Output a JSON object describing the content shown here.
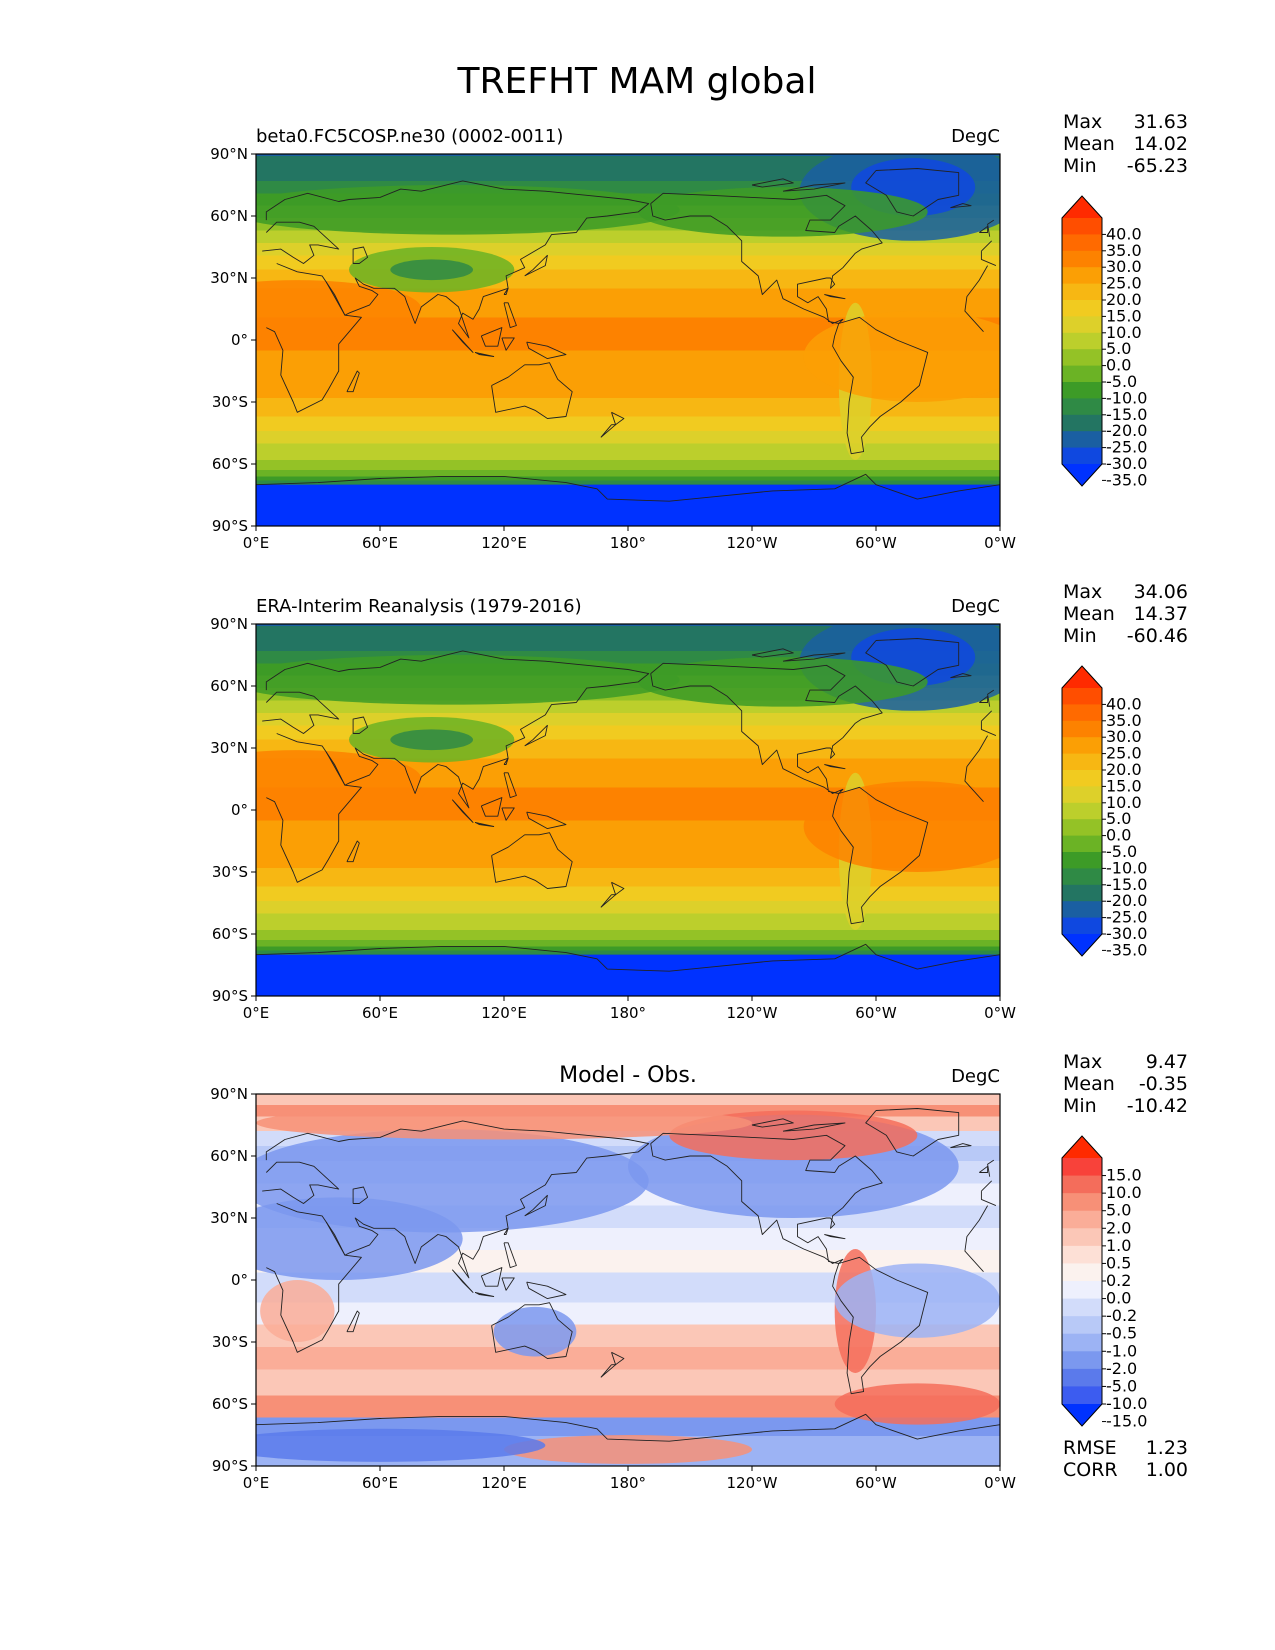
{
  "figure": {
    "title": "TREFHT MAM global"
  },
  "panels": [
    {
      "id": "test",
      "title_left": "beta0.FC5COSP.ne30 (0002-0011)",
      "title_center": "",
      "units": "DegC",
      "stats": [
        {
          "label": "Max",
          "value": "31.63"
        },
        {
          "label": "Mean",
          "value": "14.02"
        },
        {
          "label": "Min",
          "value": "-65.23"
        }
      ],
      "colorbar": {
        "labels": [
          "40.0",
          "35.0",
          "30.0",
          "25.0",
          "20.0",
          "15.0",
          "10.0",
          "5.0",
          "0.0",
          "-5.0",
          "-10.0",
          "-15.0",
          "-20.0",
          "-25.0",
          "-30.0",
          "-35.0"
        ],
        "colors": [
          "#ff2a00",
          "#ff4e00",
          "#ff6a00",
          "#fd8200",
          "#fb9f05",
          "#f7b713",
          "#f1cb20",
          "#ddd02a",
          "#bccf2c",
          "#94c226",
          "#6bb325",
          "#3d9b27",
          "#2f8a45",
          "#237562",
          "#1a5fa2",
          "#0f48e0",
          "#0032ff"
        ],
        "extend": "both"
      },
      "footer_stats": [],
      "map": {
        "kind": "temperature",
        "variant": "model"
      }
    },
    {
      "id": "reference",
      "title_left": "ERA-Interim Reanalysis (1979-2016)",
      "title_center": "",
      "units": "DegC",
      "stats": [
        {
          "label": "Max",
          "value": "34.06"
        },
        {
          "label": "Mean",
          "value": "14.37"
        },
        {
          "label": "Min",
          "value": "-60.46"
        }
      ],
      "colorbar": {
        "labels": [
          "40.0",
          "35.0",
          "30.0",
          "25.0",
          "20.0",
          "15.0",
          "10.0",
          "5.0",
          "0.0",
          "-5.0",
          "-10.0",
          "-15.0",
          "-20.0",
          "-25.0",
          "-30.0",
          "-35.0"
        ],
        "colors": [
          "#ff2a00",
          "#ff4e00",
          "#ff6a00",
          "#fd8200",
          "#fb9f05",
          "#f7b713",
          "#f1cb20",
          "#ddd02a",
          "#bccf2c",
          "#94c226",
          "#6bb325",
          "#3d9b27",
          "#2f8a45",
          "#237562",
          "#1a5fa2",
          "#0f48e0",
          "#0032ff"
        ],
        "extend": "both"
      },
      "footer_stats": [],
      "map": {
        "kind": "temperature",
        "variant": "obs"
      }
    },
    {
      "id": "diff",
      "title_left": "",
      "title_center": "Model - Obs.",
      "units": "DegC",
      "stats": [
        {
          "label": "Max",
          "value": "9.47"
        },
        {
          "label": "Mean",
          "value": "-0.35"
        },
        {
          "label": "Min",
          "value": "-10.42"
        }
      ],
      "colorbar": {
        "labels": [
          "15.0",
          "10.0",
          "5.0",
          "2.0",
          "1.0",
          "0.5",
          "0.2",
          "0.0",
          "-0.2",
          "-0.5",
          "-1.0",
          "-2.0",
          "-5.0",
          "-10.0",
          "-15.0"
        ],
        "colors": [
          "#ff2a00",
          "#f8423a",
          "#f46d5b",
          "#f79077",
          "#faad98",
          "#fbc7b7",
          "#fde0d6",
          "#fbf2ee",
          "#eef0fd",
          "#d2dcfa",
          "#b8c9f7",
          "#9cb3f4",
          "#7b98ef",
          "#5b7aeb",
          "#3c5cf0",
          "#0032ff"
        ],
        "extend": "both"
      },
      "footer_stats": [
        {
          "label": "RMSE",
          "value": "1.23"
        },
        {
          "label": "CORR",
          "value": "1.00"
        }
      ],
      "map": {
        "kind": "difference",
        "variant": "diff"
      }
    }
  ],
  "axes": {
    "y_ticks": [
      "90°N",
      "60°N",
      "30°N",
      "0°",
      "30°S",
      "60°S",
      "90°S"
    ],
    "x_ticks": [
      "0°E",
      "60°E",
      "120°E",
      "180°",
      "120°W",
      "60°W",
      "0°W"
    ]
  },
  "chart_data": [
    {
      "type": "heatmap",
      "title": "beta0.FC5COSP.ne30 (0002-0011)",
      "xlabel": "",
      "ylabel": "",
      "units": "DegC",
      "x_ticks": [
        "0°E",
        "60°E",
        "120°E",
        "180°",
        "120°W",
        "60°W",
        "0°W"
      ],
      "y_ticks": [
        "90°N",
        "60°N",
        "30°N",
        "0°",
        "30°S",
        "60°S",
        "90°S"
      ],
      "xlim": [
        0,
        360
      ],
      "ylim": [
        -90,
        90
      ],
      "levels": [
        -35,
        -30,
        -25,
        -20,
        -15,
        -10,
        -5,
        0,
        5,
        10,
        15,
        20,
        25,
        30,
        35,
        40
      ],
      "stats": {
        "max": 31.63,
        "mean": 14.02,
        "min": -65.23
      }
    },
    {
      "type": "heatmap",
      "title": "ERA-Interim Reanalysis (1979-2016)",
      "xlabel": "",
      "ylabel": "",
      "units": "DegC",
      "x_ticks": [
        "0°E",
        "60°E",
        "120°E",
        "180°",
        "120°W",
        "60°W",
        "0°W"
      ],
      "y_ticks": [
        "90°N",
        "60°N",
        "30°N",
        "0°",
        "30°S",
        "60°S",
        "90°S"
      ],
      "xlim": [
        0,
        360
      ],
      "ylim": [
        -90,
        90
      ],
      "levels": [
        -35,
        -30,
        -25,
        -20,
        -15,
        -10,
        -5,
        0,
        5,
        10,
        15,
        20,
        25,
        30,
        35,
        40
      ],
      "stats": {
        "max": 34.06,
        "mean": 14.37,
        "min": -60.46
      }
    },
    {
      "type": "heatmap",
      "title": "Model - Obs.",
      "xlabel": "",
      "ylabel": "",
      "units": "DegC",
      "x_ticks": [
        "0°E",
        "60°E",
        "120°E",
        "180°",
        "120°W",
        "60°W",
        "0°W"
      ],
      "y_ticks": [
        "90°N",
        "60°N",
        "30°N",
        "0°",
        "30°S",
        "60°S",
        "90°S"
      ],
      "xlim": [
        0,
        360
      ],
      "ylim": [
        -90,
        90
      ],
      "levels": [
        -15,
        -10,
        -5,
        -2,
        -1,
        -0.5,
        -0.2,
        0,
        0.2,
        0.5,
        1,
        2,
        5,
        10,
        15
      ],
      "stats": {
        "max": 9.47,
        "mean": -0.35,
        "min": -10.42,
        "rmse": 1.23,
        "corr": 1.0
      }
    }
  ]
}
